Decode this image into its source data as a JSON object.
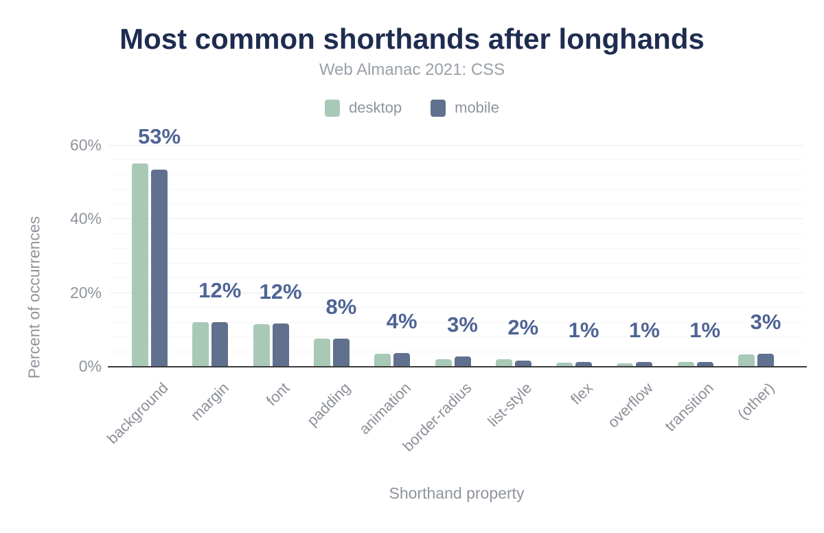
{
  "header": {
    "title": "Most common shorthands after longhands",
    "subtitle": "Web Almanac 2021: CSS"
  },
  "legend": {
    "items": [
      {
        "label": "desktop",
        "color": "#a9c9b7"
      },
      {
        "label": "mobile",
        "color": "#60708e"
      }
    ]
  },
  "colors": {
    "background": "#ffffff",
    "title": "#1e2c50",
    "subtitle": "#9aa0a8",
    "muted_text": "#8f949c",
    "desktop_bar": "#a9c9b7",
    "mobile_bar": "#60708e",
    "value_label": "#4e6494",
    "axis_line": "#3b3b3b",
    "grid_major": "#eaeaea",
    "grid_minor": "#f5f5f5"
  },
  "chart_data": {
    "type": "bar",
    "title": "Most common shorthands after longhands",
    "subtitle": "Web Almanac 2021: CSS",
    "xlabel": "Shorthand property",
    "ylabel": "Percent of occurrences",
    "categories": [
      "background",
      "margin",
      "font",
      "padding",
      "animation",
      "border-radius",
      "list-style",
      "flex",
      "overflow",
      "transition",
      "(other)"
    ],
    "series": [
      {
        "name": "desktop",
        "color": "#a9c9b7",
        "values": [
          54.9,
          12.0,
          11.3,
          7.5,
          3.4,
          1.8,
          1.8,
          1.0,
          0.8,
          1.1,
          3.2
        ]
      },
      {
        "name": "mobile",
        "color": "#60708e",
        "values": [
          53.3,
          12.0,
          11.6,
          7.5,
          3.5,
          2.6,
          1.5,
          1.2,
          1.1,
          1.1,
          3.4
        ]
      }
    ],
    "bar_labels": [
      "53%",
      "12%",
      "12%",
      "8%",
      "4%",
      "3%",
      "2%",
      "1%",
      "1%",
      "1%",
      "3%"
    ],
    "y_ticks": [
      {
        "value": 0,
        "label": "0%"
      },
      {
        "value": 20,
        "label": "20%"
      },
      {
        "value": 40,
        "label": "40%"
      },
      {
        "value": 60,
        "label": "60%"
      }
    ],
    "ylim": [
      0,
      60
    ],
    "grid": {
      "major_every": 20,
      "minor_every": 4,
      "enabled": true
    },
    "legend_position": "top"
  }
}
